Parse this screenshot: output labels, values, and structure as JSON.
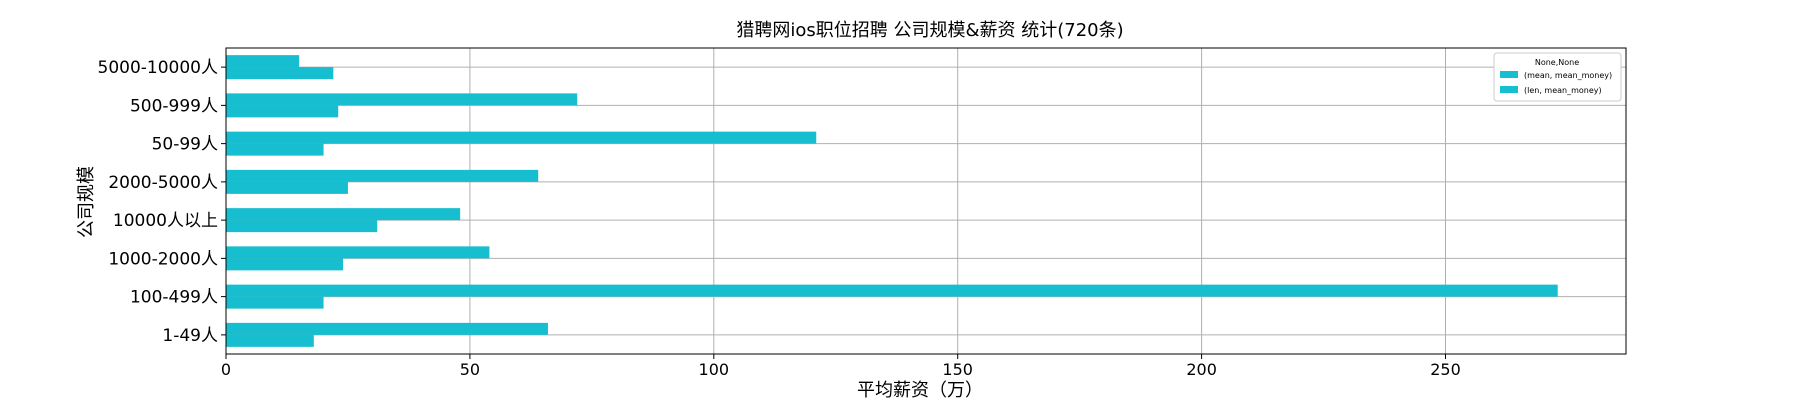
{
  "chart_data": {
    "type": "bar",
    "orientation": "horizontal",
    "title": "猎聘网ios职位招聘 公司规模&薪资 统计(720条)",
    "xlabel": "平均薪资（万）",
    "ylabel": "公司规模",
    "categories": [
      "1-49人",
      "100-499人",
      "1000-2000人",
      "10000人以上",
      "2000-5000人",
      "50-99人",
      "500-999人",
      "5000-10000人"
    ],
    "xlim": [
      0,
      287
    ],
    "xticks": [
      0,
      50,
      100,
      150,
      200,
      250
    ],
    "grid": true,
    "legend": {
      "title": "None,None",
      "placement": "top-right"
    },
    "series": [
      {
        "name": "(mean, mean_money)",
        "color": "#17becf",
        "values": [
          66,
          273,
          54,
          48,
          64,
          121,
          72,
          15
        ]
      },
      {
        "name": "(len, mean_money)",
        "color": "#17becf",
        "values": [
          18,
          20,
          24,
          31,
          25,
          20,
          23,
          22
        ]
      }
    ]
  }
}
